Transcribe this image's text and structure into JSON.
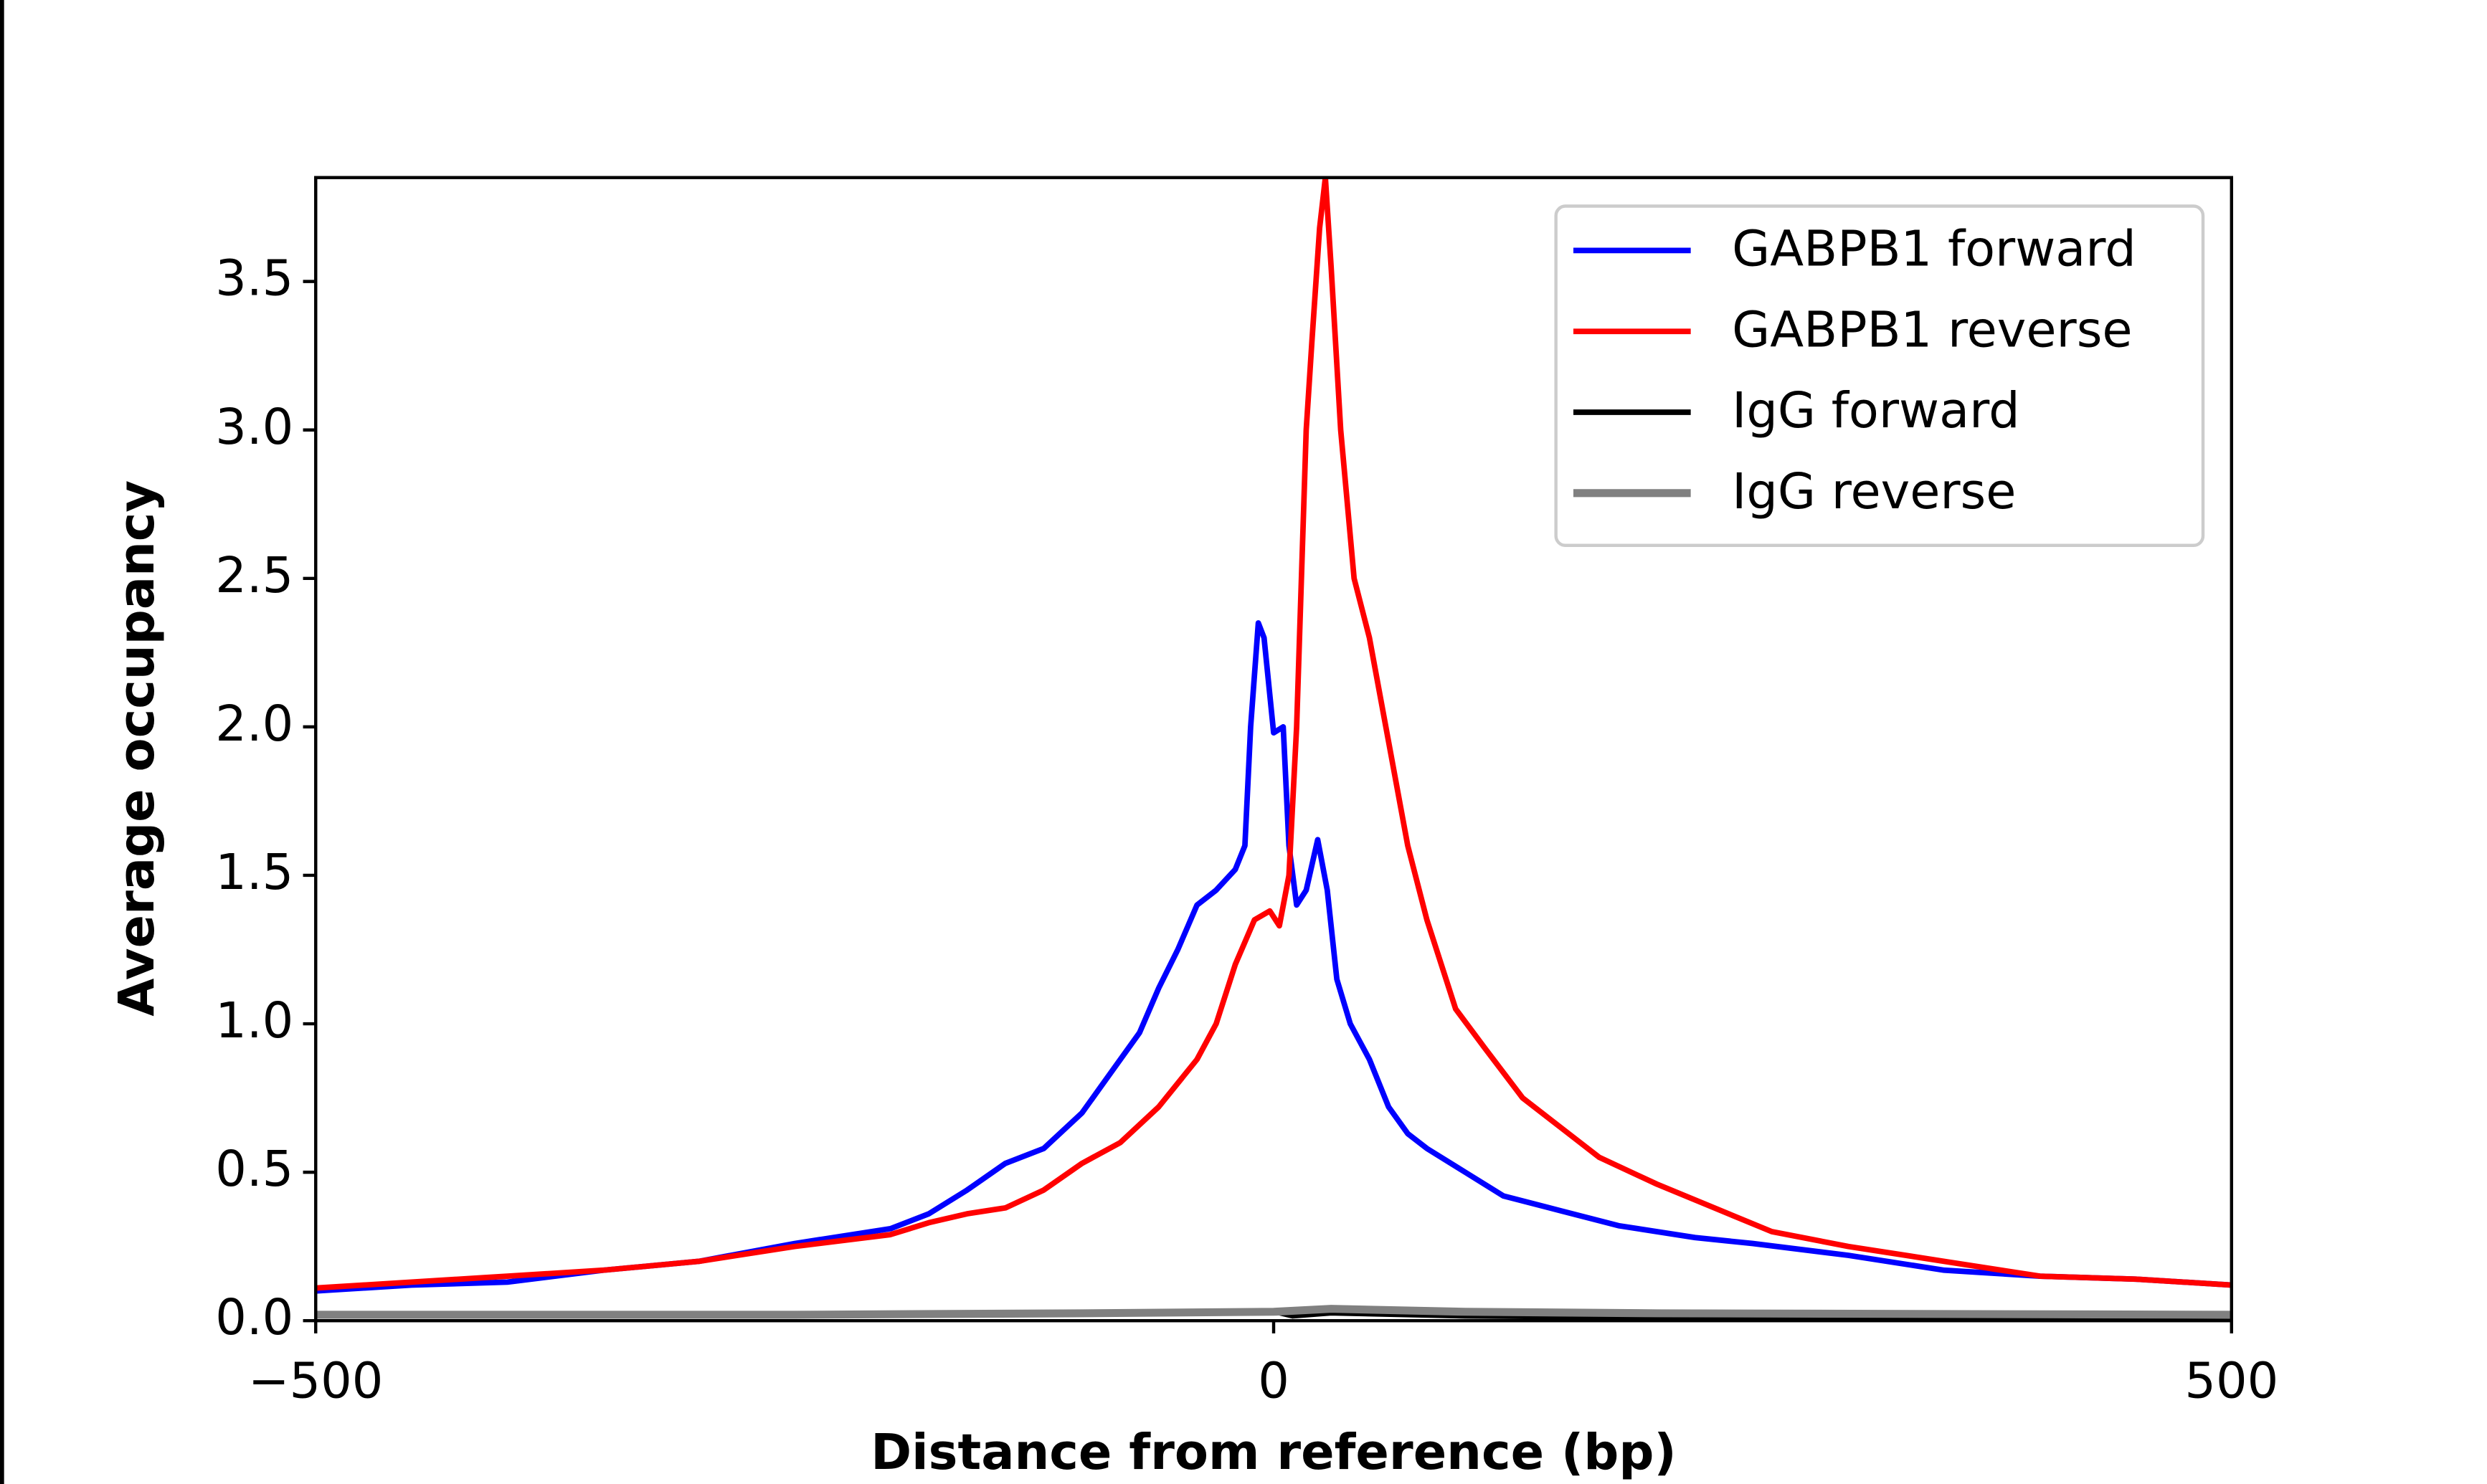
{
  "chart_data": {
    "type": "line",
    "xlabel": "Distance from reference (bp)",
    "ylabel": "Average occupancy",
    "xlim": [
      -500,
      500
    ],
    "ylim": [
      0,
      3.85
    ],
    "xticks": [
      {
        "value": -500,
        "label": "−500"
      },
      0,
      500
    ],
    "yticks": [
      {
        "value": 0,
        "label": "0.0"
      },
      0.5,
      {
        "value": 1,
        "label": "1.0"
      },
      1.5,
      {
        "value": 2,
        "label": "2.0"
      },
      2.5,
      {
        "value": 3,
        "label": "3.0"
      },
      3.5
    ],
    "legend": "upper right",
    "series": [
      {
        "name": "GABPB1 forward",
        "color": "#0000ff",
        "x": [
          -500,
          -450,
          -400,
          -350,
          -300,
          -250,
          -200,
          -180,
          -160,
          -140,
          -120,
          -100,
          -80,
          -70,
          -60,
          -50,
          -40,
          -30,
          -20,
          -15,
          -12,
          -8,
          -5,
          0,
          5,
          8,
          12,
          17,
          23,
          28,
          33,
          40,
          50,
          60,
          70,
          80,
          100,
          120,
          150,
          180,
          220,
          250,
          300,
          350,
          400,
          450,
          500
        ],
        "values": [
          0.1,
          0.12,
          0.13,
          0.17,
          0.2,
          0.26,
          0.31,
          0.36,
          0.44,
          0.53,
          0.58,
          0.7,
          0.88,
          0.97,
          1.12,
          1.25,
          1.4,
          1.45,
          1.52,
          1.6,
          2.0,
          2.35,
          2.3,
          1.98,
          2.0,
          1.6,
          1.4,
          1.45,
          1.62,
          1.45,
          1.15,
          1.0,
          0.88,
          0.72,
          0.63,
          0.58,
          0.5,
          0.42,
          0.37,
          0.32,
          0.28,
          0.26,
          0.22,
          0.17,
          0.15,
          0.14,
          0.12
        ]
      },
      {
        "name": "GABPB1 reverse",
        "color": "#ff0000",
        "x": [
          -500,
          -450,
          -400,
          -350,
          -300,
          -250,
          -200,
          -180,
          -160,
          -140,
          -120,
          -100,
          -80,
          -60,
          -40,
          -30,
          -20,
          -10,
          -2,
          3,
          8,
          12,
          17,
          20,
          24,
          27,
          30,
          35,
          42,
          50,
          60,
          70,
          80,
          95,
          110,
          130,
          150,
          170,
          200,
          230,
          260,
          300,
          350,
          400,
          450,
          500
        ],
        "values": [
          0.11,
          0.13,
          0.15,
          0.17,
          0.2,
          0.25,
          0.29,
          0.33,
          0.36,
          0.38,
          0.44,
          0.53,
          0.6,
          0.72,
          0.88,
          1.0,
          1.2,
          1.35,
          1.38,
          1.33,
          1.5,
          2.0,
          3.0,
          3.3,
          3.68,
          3.85,
          3.55,
          3.0,
          2.5,
          2.3,
          1.95,
          1.6,
          1.35,
          1.05,
          0.92,
          0.75,
          0.65,
          0.55,
          0.46,
          0.38,
          0.3,
          0.25,
          0.2,
          0.15,
          0.14,
          0.12
        ]
      },
      {
        "name": "IgG forward",
        "color": "#000000",
        "x": [
          -500,
          -250,
          -100,
          0,
          10,
          30,
          100,
          200,
          500
        ],
        "values": [
          0.02,
          0.02,
          0.025,
          0.03,
          0.015,
          0.025,
          0.015,
          0.01,
          0.01
        ]
      },
      {
        "name": "IgG reverse",
        "color": "#808080",
        "x": [
          -500,
          -250,
          -100,
          0,
          30,
          100,
          200,
          500
        ],
        "values": [
          0.02,
          0.02,
          0.025,
          0.03,
          0.04,
          0.03,
          0.025,
          0.02
        ]
      }
    ]
  }
}
